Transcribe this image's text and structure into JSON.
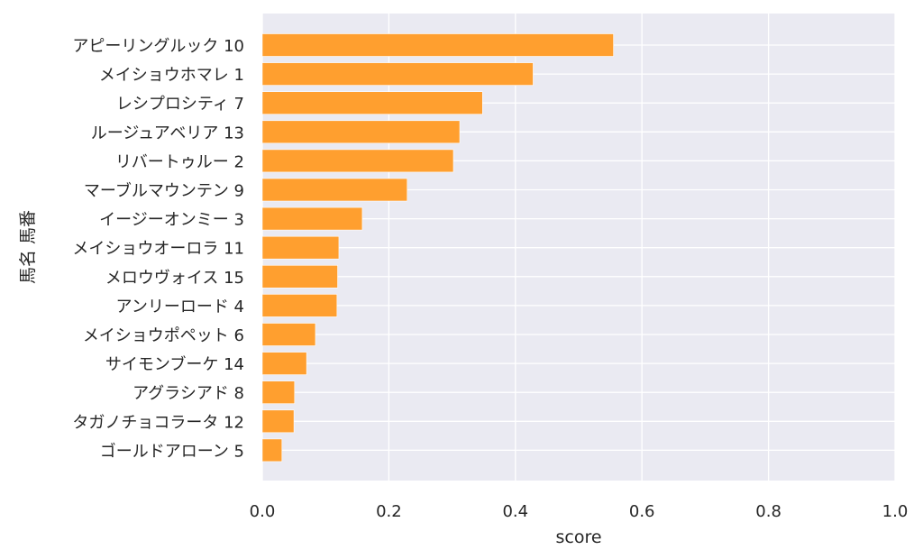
{
  "chart_data": {
    "type": "bar",
    "orientation": "horizontal",
    "xlabel": "score",
    "ylabel": "馬名 馬番",
    "xlim": [
      0,
      1.0
    ],
    "xticks": [
      "0.0",
      "0.2",
      "0.4",
      "0.6",
      "0.8",
      "1.0"
    ],
    "grid": true,
    "bar_color": "#ff9f2f",
    "background_color": "#eaeaf2",
    "grid_color": "#ffffff",
    "categories": [
      "アピーリングルック 10",
      "メイショウホマレ 1",
      "レシプロシティ 7",
      "ルージュアベリア 13",
      "リバートゥルー 2",
      "マーブルマウンテン 9",
      "イージーオンミー 3",
      "メイショウオーロラ 11",
      "メロウヴォイス 15",
      "アンリーロード 4",
      "メイショウポペット 6",
      "サイモンブーケ 14",
      "アグラシアド 8",
      "タガノチョコラータ 12",
      "ゴールドアローン 5"
    ],
    "values": [
      0.555,
      0.428,
      0.348,
      0.312,
      0.302,
      0.229,
      0.158,
      0.121,
      0.119,
      0.118,
      0.084,
      0.07,
      0.051,
      0.05,
      0.031
    ]
  }
}
